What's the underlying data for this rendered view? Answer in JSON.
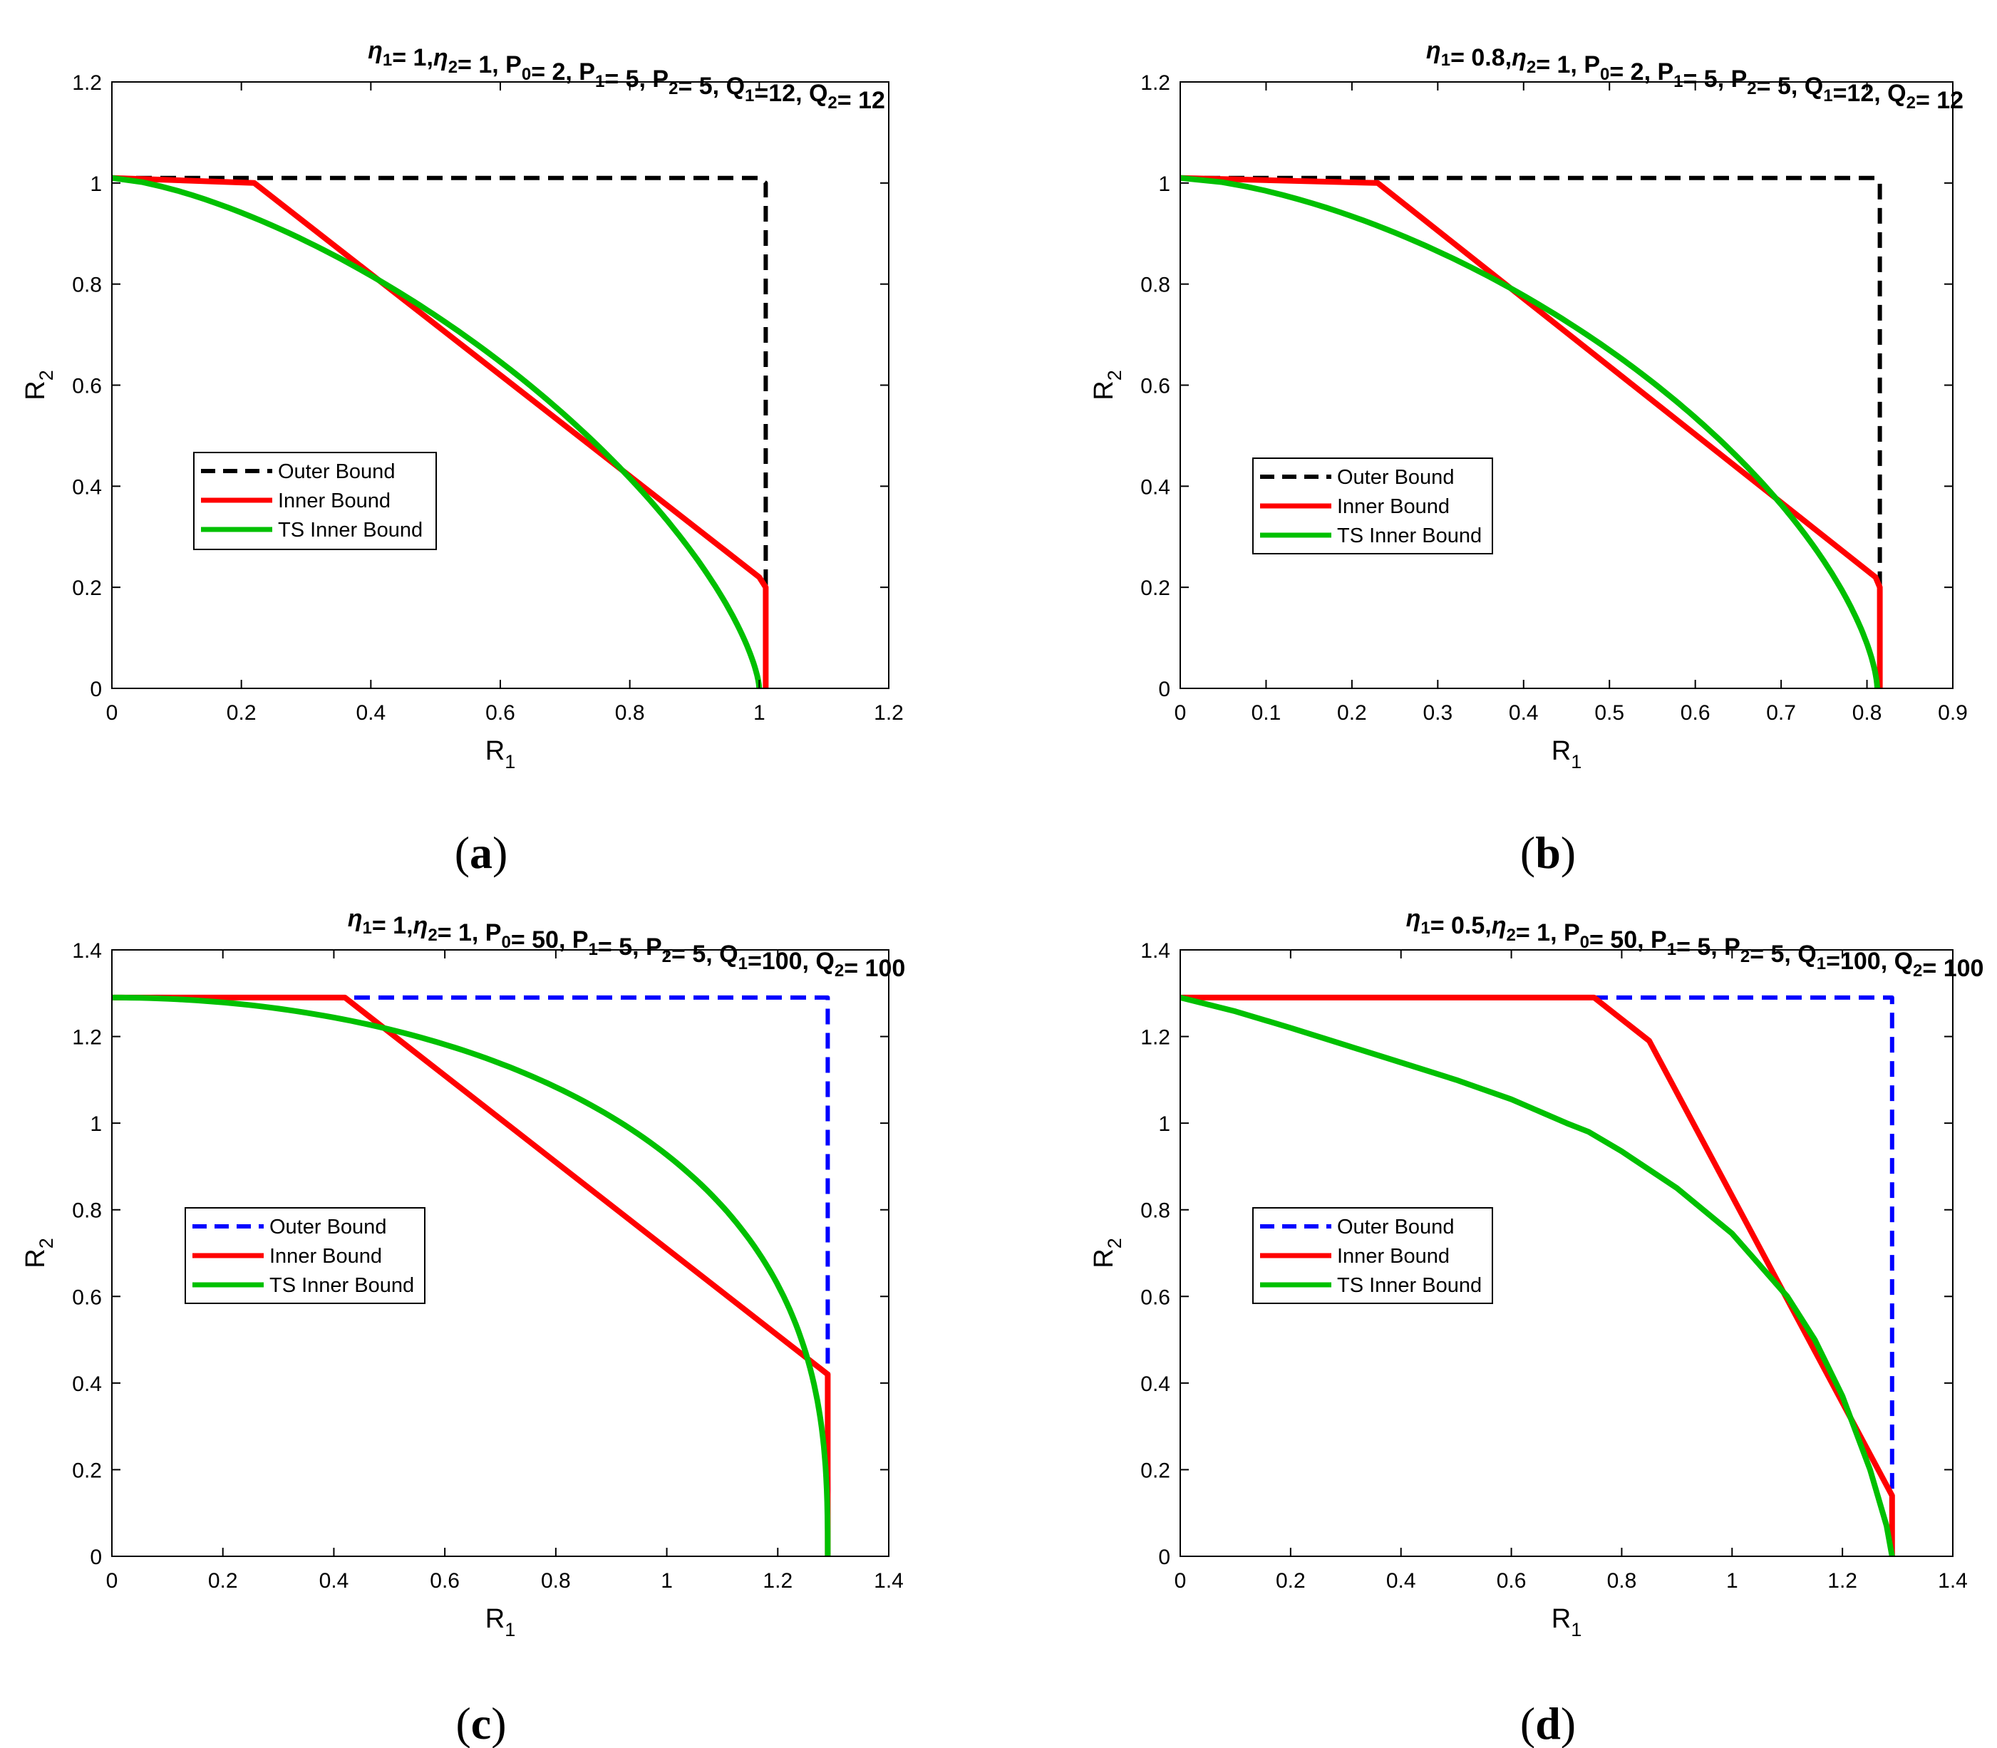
{
  "figure": {
    "panel_labels": [
      "(a)",
      "(b)",
      "(c)",
      "(d)"
    ],
    "legend_entries": [
      "Outer Bound",
      "Inner Bound",
      "TS Inner Bound"
    ],
    "colors": {
      "inner": "#ff0000",
      "ts_inner": "#00c000",
      "outer_black": "#000000",
      "outer_blue": "#0000ff"
    }
  },
  "chart_data": [
    {
      "id": "a",
      "type": "line",
      "title_parts": [
        [
          "η",
          "1"
        ],
        [
          "= 1,",
          ""
        ],
        [
          "η",
          "2"
        ],
        [
          "= 1, P",
          "0"
        ],
        [
          "= 2, P",
          "1"
        ],
        [
          "= 5, P",
          "2"
        ],
        [
          "= 5, Q",
          "1"
        ],
        [
          "=12, Q",
          "2"
        ],
        [
          "= 12",
          ""
        ]
      ],
      "xlabel": "R1",
      "ylabel": "R2",
      "xlim": [
        0,
        1.2
      ],
      "ylim": [
        0,
        1.2
      ],
      "xticks": [
        0,
        0.2,
        0.4,
        0.6,
        0.8,
        1,
        1.2
      ],
      "xtick_labels": [
        "0",
        "0.2",
        "0.4",
        "0.6",
        "0.8",
        "1",
        "1.2"
      ],
      "yticks": [
        0,
        0.2,
        0.4,
        0.6,
        0.8,
        1,
        1.2
      ],
      "ytick_labels": [
        "0",
        "0.2",
        "0.4",
        "0.6",
        "0.8",
        "1",
        "1.2"
      ],
      "legend_position": "middle-left",
      "series": [
        {
          "name": "Outer Bound",
          "style": "dashed",
          "color": "#000000",
          "x": [
            0,
            1.0,
            1.01,
            1.01
          ],
          "y": [
            1.01,
            1.01,
            1.0,
            0
          ]
        },
        {
          "name": "Inner Bound",
          "style": "solid",
          "color": "#ff0000",
          "x": [
            0,
            0.22,
            1.0,
            1.01,
            1.01
          ],
          "y": [
            1.01,
            1.0,
            0.22,
            0.2,
            0
          ]
        },
        {
          "name": "TS Inner Bound",
          "style": "solid",
          "color": "#00c000",
          "curve": "power",
          "x0": 1.0,
          "y0": 1.01,
          "exponent": 1.45
        }
      ]
    },
    {
      "id": "b",
      "type": "line",
      "title_parts": [
        [
          "η",
          "1"
        ],
        [
          "= 0.8,",
          ""
        ],
        [
          "η",
          "2"
        ],
        [
          "= 1, P",
          "0"
        ],
        [
          "= 2, P",
          "1"
        ],
        [
          "= 5, P",
          "2"
        ],
        [
          "= 5, Q",
          "1"
        ],
        [
          "=12, Q",
          "2"
        ],
        [
          "= 12",
          ""
        ]
      ],
      "xlabel": "R1",
      "ylabel": "R2",
      "xlim": [
        0,
        0.9
      ],
      "ylim": [
        0,
        1.2
      ],
      "xticks": [
        0,
        0.1,
        0.2,
        0.3,
        0.4,
        0.5,
        0.6,
        0.7,
        0.8,
        0.9
      ],
      "xtick_labels": [
        "0",
        "0.1",
        "0.2",
        "0.3",
        "0.4",
        "0.5",
        "0.6",
        "0.7",
        "0.8",
        "0.9"
      ],
      "yticks": [
        0,
        0.2,
        0.4,
        0.6,
        0.8,
        1,
        1.2
      ],
      "ytick_labels": [
        "0",
        "0.2",
        "0.4",
        "0.6",
        "0.8",
        "1",
        "1.2"
      ],
      "legend_position": "middle-left",
      "series": [
        {
          "name": "Outer Bound",
          "style": "dashed",
          "color": "#000000",
          "x": [
            0,
            0.81,
            0.815,
            0.815
          ],
          "y": [
            1.01,
            1.01,
            1.0,
            0
          ]
        },
        {
          "name": "Inner Bound",
          "style": "solid",
          "color": "#ff0000",
          "x": [
            0,
            0.23,
            0.81,
            0.815,
            0.815
          ],
          "y": [
            1.01,
            1.0,
            0.22,
            0.2,
            0
          ]
        },
        {
          "name": "TS Inner Bound",
          "style": "solid",
          "color": "#00c000",
          "curve": "power",
          "x0": 0.812,
          "y0": 1.01,
          "exponent": 1.55
        }
      ]
    },
    {
      "id": "c",
      "type": "line",
      "title_parts": [
        [
          "η",
          "1"
        ],
        [
          "= 1,",
          ""
        ],
        [
          "η",
          "2"
        ],
        [
          "= 1, P",
          "0"
        ],
        [
          "= 50, P",
          "1"
        ],
        [
          "= 5, P",
          "2"
        ],
        [
          "= 5, Q",
          "1"
        ],
        [
          "=100, Q",
          "2"
        ],
        [
          "= 100",
          ""
        ]
      ],
      "xlabel": "R1",
      "ylabel": "R2",
      "xlim": [
        0,
        1.4
      ],
      "ylim": [
        0,
        1.4
      ],
      "xticks": [
        0,
        0.2,
        0.4,
        0.6,
        0.8,
        1,
        1.2,
        1.4
      ],
      "xtick_labels": [
        "0",
        "0.2",
        "0.4",
        "0.6",
        "0.8",
        "1",
        "1.2",
        "1.4"
      ],
      "yticks": [
        0,
        0.2,
        0.4,
        0.6,
        0.8,
        1,
        1.2,
        1.4
      ],
      "ytick_labels": [
        "0",
        "0.2",
        "0.4",
        "0.6",
        "0.8",
        "1",
        "1.2",
        "1.4"
      ],
      "legend_position": "middle-left",
      "series": [
        {
          "name": "Outer Bound",
          "style": "dashed",
          "color": "#0000ff",
          "x": [
            0,
            1.29,
            1.29
          ],
          "y": [
            1.29,
            1.29,
            0
          ]
        },
        {
          "name": "Inner Bound",
          "style": "solid",
          "color": "#ff0000",
          "x": [
            0,
            0.42,
            1.29,
            1.29
          ],
          "y": [
            1.29,
            1.29,
            0.42,
            0
          ]
        },
        {
          "name": "TS Inner Bound",
          "style": "solid",
          "color": "#00c000",
          "curve": "ellipse",
          "x0": 1.29,
          "y0": 1.29
        }
      ]
    },
    {
      "id": "d",
      "type": "line",
      "title_parts": [
        [
          "η",
          "1"
        ],
        [
          "= 0.5,",
          ""
        ],
        [
          "η",
          "2"
        ],
        [
          "= 1, P",
          "0"
        ],
        [
          "= 50, P",
          "1"
        ],
        [
          "= 5, P",
          "2"
        ],
        [
          "= 5, Q",
          "1"
        ],
        [
          "=100, Q",
          "2"
        ],
        [
          "= 100",
          ""
        ]
      ],
      "xlabel": "R1",
      "ylabel": "R2",
      "xlim": [
        0,
        1.4
      ],
      "ylim": [
        0,
        1.4
      ],
      "xticks": [
        0,
        0.2,
        0.4,
        0.6,
        0.8,
        1,
        1.2,
        1.4
      ],
      "xtick_labels": [
        "0",
        "0.2",
        "0.4",
        "0.6",
        "0.8",
        "1",
        "1.2",
        "1.4"
      ],
      "yticks": [
        0,
        0.2,
        0.4,
        0.6,
        0.8,
        1,
        1.2,
        1.4
      ],
      "ytick_labels": [
        "0",
        "0.2",
        "0.4",
        "0.6",
        "0.8",
        "1",
        "1.2",
        "1.4"
      ],
      "legend_position": "middle-left",
      "series": [
        {
          "name": "Outer Bound",
          "style": "dashed",
          "color": "#0000ff",
          "x": [
            0,
            1.29,
            1.29
          ],
          "y": [
            1.29,
            1.29,
            0
          ]
        },
        {
          "name": "Inner Bound",
          "style": "solid",
          "color": "#ff0000",
          "x": [
            0,
            0.75,
            0.85,
            1.29,
            1.29
          ],
          "y": [
            1.29,
            1.29,
            1.19,
            0.14,
            0
          ]
        },
        {
          "name": "TS Inner Bound",
          "style": "solid",
          "color": "#00c000",
          "x": [
            0,
            0.1,
            0.2,
            0.3,
            0.4,
            0.5,
            0.6,
            0.7,
            0.74,
            0.8,
            0.9,
            1.0,
            1.1,
            1.15,
            1.2,
            1.25,
            1.28,
            1.29
          ],
          "y": [
            1.29,
            1.258,
            1.22,
            1.18,
            1.14,
            1.1,
            1.055,
            1.0,
            0.98,
            0.935,
            0.85,
            0.745,
            0.6,
            0.5,
            0.37,
            0.2,
            0.07,
            0
          ]
        }
      ]
    }
  ]
}
